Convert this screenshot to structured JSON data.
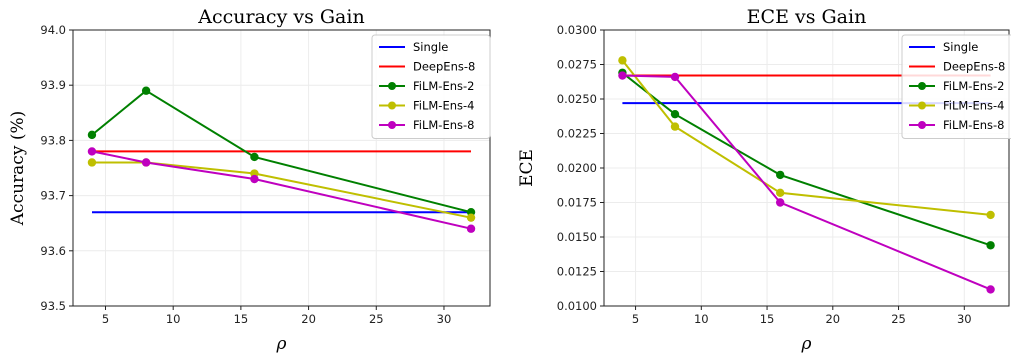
{
  "chart_data": [
    {
      "type": "line",
      "title": "Accuracy vs Gain",
      "xlabel": "ρ",
      "ylabel": "Accuracy (%)",
      "xlim": [
        2.6,
        33.4
      ],
      "ylim": [
        93.5,
        94.0
      ],
      "xticks": [
        5,
        10,
        15,
        20,
        25,
        30
      ],
      "yticks": [
        93.5,
        93.6,
        93.7,
        93.8,
        93.9,
        94.0
      ],
      "ytick_decimals": 1,
      "grid": true,
      "legend_position": "top-right",
      "series": [
        {
          "name": "Single",
          "color": "#0000ff",
          "marker": false,
          "x": [
            4,
            32
          ],
          "y": [
            93.67,
            93.67
          ]
        },
        {
          "name": "DeepEns-8",
          "color": "#ff0000",
          "marker": false,
          "x": [
            4,
            32
          ],
          "y": [
            93.78,
            93.78
          ]
        },
        {
          "name": "FiLM-Ens-2",
          "color": "#008000",
          "marker": true,
          "x": [
            4,
            8,
            16,
            32
          ],
          "y": [
            93.81,
            93.89,
            93.77,
            93.67
          ]
        },
        {
          "name": "FiLM-Ens-4",
          "color": "#bfbf00",
          "marker": true,
          "x": [
            4,
            8,
            16,
            32
          ],
          "y": [
            93.76,
            93.76,
            93.74,
            93.66
          ]
        },
        {
          "name": "FiLM-Ens-8",
          "color": "#bf00bf",
          "marker": true,
          "x": [
            4,
            8,
            16,
            32
          ],
          "y": [
            93.78,
            93.76,
            93.73,
            93.64
          ]
        }
      ]
    },
    {
      "type": "line",
      "title": "ECE vs Gain",
      "xlabel": "ρ",
      "ylabel": "ECE",
      "xlim": [
        2.6,
        33.4
      ],
      "ylim": [
        0.01,
        0.03
      ],
      "xticks": [
        5,
        10,
        15,
        20,
        25,
        30
      ],
      "yticks": [
        0.01,
        0.0125,
        0.015,
        0.0175,
        0.02,
        0.0225,
        0.025,
        0.0275,
        0.03
      ],
      "ytick_decimals": 4,
      "grid": true,
      "legend_position": "top-right",
      "series": [
        {
          "name": "Single",
          "color": "#0000ff",
          "marker": false,
          "x": [
            4,
            32
          ],
          "y": [
            0.0247,
            0.0247
          ]
        },
        {
          "name": "DeepEns-8",
          "color": "#ff0000",
          "marker": false,
          "x": [
            4,
            32
          ],
          "y": [
            0.0267,
            0.0267
          ]
        },
        {
          "name": "FiLM-Ens-2",
          "color": "#008000",
          "marker": true,
          "x": [
            4,
            8,
            16,
            32
          ],
          "y": [
            0.0269,
            0.0239,
            0.0195,
            0.0144
          ]
        },
        {
          "name": "FiLM-Ens-4",
          "color": "#bfbf00",
          "marker": true,
          "x": [
            4,
            8,
            16,
            32
          ],
          "y": [
            0.0278,
            0.023,
            0.0182,
            0.0166
          ]
        },
        {
          "name": "FiLM-Ens-8",
          "color": "#bf00bf",
          "marker": true,
          "x": [
            4,
            8,
            16,
            32
          ],
          "y": [
            0.0267,
            0.0266,
            0.0175,
            0.0112
          ]
        }
      ]
    }
  ]
}
